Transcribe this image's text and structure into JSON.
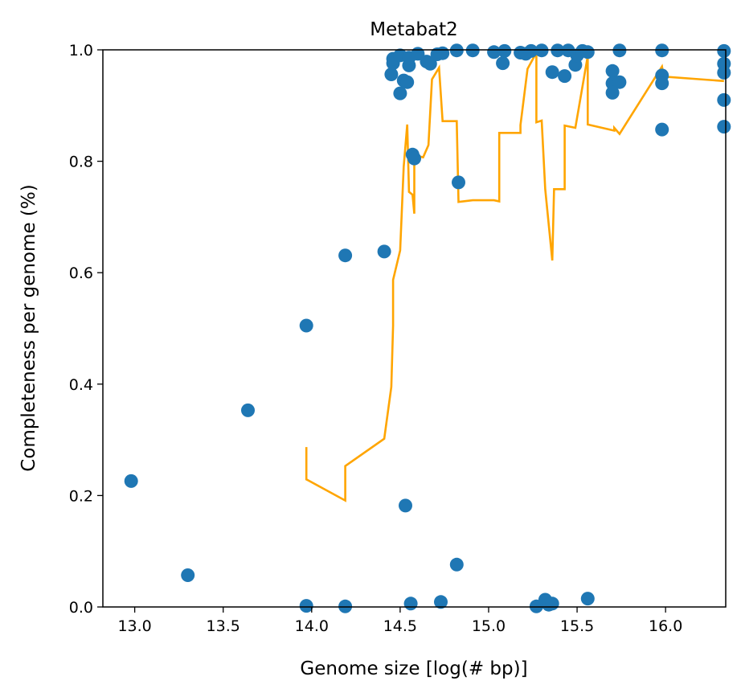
{
  "chart_data": {
    "type": "scatter",
    "title": "Metabat2",
    "xlabel": "Genome size [log(# bp)]",
    "ylabel": "Completeness per genome (%)",
    "xlim": [
      12.82,
      16.34
    ],
    "ylim": [
      0.0,
      1.0
    ],
    "x_ticks": [
      "13.0",
      "13.5",
      "14.0",
      "14.5",
      "15.0",
      "15.5",
      "16.0"
    ],
    "x_tick_values": [
      13.0,
      13.5,
      14.0,
      14.5,
      15.0,
      15.5,
      16.0
    ],
    "y_ticks": [
      "0.0",
      "0.2",
      "0.4",
      "0.6",
      "0.8",
      "1.0"
    ],
    "y_tick_values": [
      0.0,
      0.2,
      0.4,
      0.6,
      0.8,
      1.0
    ],
    "grid": false,
    "colors": {
      "points": "#1f77b4",
      "line": "#ffa500"
    },
    "series": [
      {
        "type": "scatter",
        "points": [
          [
            12.98,
            0.226
          ],
          [
            13.3,
            0.057
          ],
          [
            13.64,
            0.353
          ],
          [
            13.97,
            0.505
          ],
          [
            13.97,
            0.002
          ],
          [
            14.19,
            0.631
          ],
          [
            14.19,
            0.001
          ],
          [
            14.41,
            0.638
          ],
          [
            14.45,
            0.956
          ],
          [
            14.46,
            0.976
          ],
          [
            14.46,
            0.984
          ],
          [
            14.5,
            0.922
          ],
          [
            14.5,
            0.99
          ],
          [
            14.52,
            0.945
          ],
          [
            14.53,
            0.182
          ],
          [
            14.54,
            0.942
          ],
          [
            14.55,
            0.972
          ],
          [
            14.55,
            0.986
          ],
          [
            14.56,
            0.006
          ],
          [
            14.57,
            0.812
          ],
          [
            14.58,
            0.805
          ],
          [
            14.6,
            0.993
          ],
          [
            14.65,
            0.979
          ],
          [
            14.67,
            0.975
          ],
          [
            14.71,
            0.992
          ],
          [
            14.73,
            0.009
          ],
          [
            14.74,
            0.994
          ],
          [
            14.82,
            0.076
          ],
          [
            14.82,
            0.999
          ],
          [
            14.83,
            0.762
          ],
          [
            14.91,
            0.999
          ],
          [
            15.03,
            0.996
          ],
          [
            15.08,
            0.976
          ],
          [
            15.09,
            0.998
          ],
          [
            15.18,
            0.995
          ],
          [
            15.21,
            0.993
          ],
          [
            15.24,
            0.998
          ],
          [
            15.27,
            0.001
          ],
          [
            15.3,
            0.999
          ],
          [
            15.32,
            0.013
          ],
          [
            15.34,
            0.004
          ],
          [
            15.36,
            0.006
          ],
          [
            15.36,
            0.96
          ],
          [
            15.39,
            0.999
          ],
          [
            15.43,
            0.953
          ],
          [
            15.45,
            0.999
          ],
          [
            15.49,
            0.973
          ],
          [
            15.5,
            0.99
          ],
          [
            15.53,
            0.998
          ],
          [
            15.56,
            0.015
          ],
          [
            15.56,
            0.996
          ],
          [
            15.7,
            0.962
          ],
          [
            15.7,
            0.94
          ],
          [
            15.7,
            0.923
          ],
          [
            15.74,
            0.942
          ],
          [
            15.74,
            0.999
          ],
          [
            15.98,
            0.999
          ],
          [
            15.98,
            0.954
          ],
          [
            15.98,
            0.94
          ],
          [
            15.98,
            0.857
          ],
          [
            16.33,
            0.998
          ],
          [
            16.33,
            0.975
          ],
          [
            16.33,
            0.959
          ],
          [
            16.33,
            0.91
          ],
          [
            16.33,
            0.862
          ]
        ]
      },
      {
        "type": "line",
        "points": [
          [
            13.97,
            0.287
          ],
          [
            13.97,
            0.229
          ],
          [
            14.19,
            0.191
          ],
          [
            14.19,
            0.253
          ],
          [
            14.41,
            0.302
          ],
          [
            14.45,
            0.395
          ],
          [
            14.46,
            0.505
          ],
          [
            14.46,
            0.587
          ],
          [
            14.5,
            0.64
          ],
          [
            14.52,
            0.79
          ],
          [
            14.54,
            0.866
          ],
          [
            14.55,
            0.745
          ],
          [
            14.57,
            0.74
          ],
          [
            14.58,
            0.706
          ],
          [
            14.58,
            0.811
          ],
          [
            14.63,
            0.807
          ],
          [
            14.66,
            0.829
          ],
          [
            14.68,
            0.947
          ],
          [
            14.72,
            0.968
          ],
          [
            14.74,
            0.872
          ],
          [
            14.82,
            0.872
          ],
          [
            14.83,
            0.727
          ],
          [
            14.91,
            0.73
          ],
          [
            15.03,
            0.73
          ],
          [
            15.06,
            0.728
          ],
          [
            15.06,
            0.851
          ],
          [
            15.18,
            0.851
          ],
          [
            15.18,
            0.865
          ],
          [
            15.22,
            0.966
          ],
          [
            15.27,
            0.995
          ],
          [
            15.27,
            0.87
          ],
          [
            15.3,
            0.873
          ],
          [
            15.32,
            0.75
          ],
          [
            15.36,
            0.622
          ],
          [
            15.37,
            0.75
          ],
          [
            15.43,
            0.75
          ],
          [
            15.43,
            0.864
          ],
          [
            15.49,
            0.86
          ],
          [
            15.56,
            0.989
          ],
          [
            15.56,
            0.866
          ],
          [
            15.71,
            0.855
          ],
          [
            15.71,
            0.86
          ],
          [
            15.74,
            0.849
          ],
          [
            15.98,
            0.97
          ],
          [
            15.99,
            0.952
          ],
          [
            16.33,
            0.944
          ]
        ]
      }
    ]
  }
}
